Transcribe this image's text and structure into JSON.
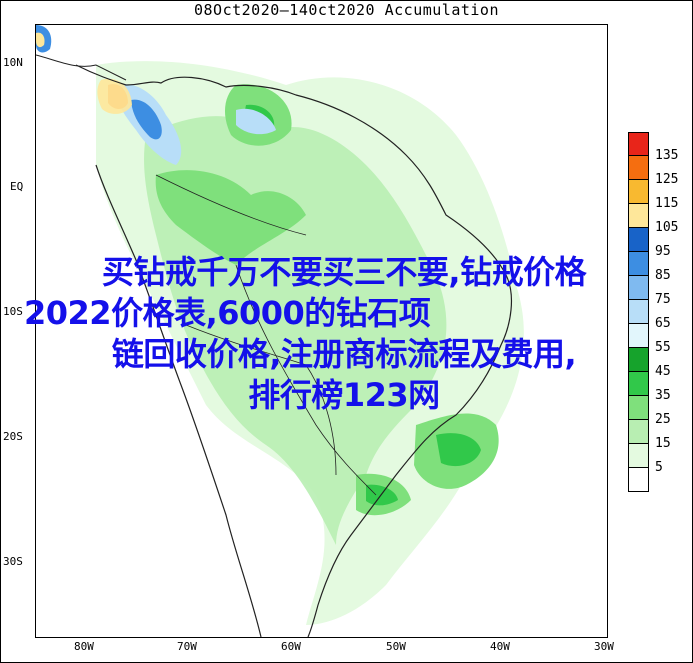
{
  "title": "08Oct2020—140ct2020 Accumulation",
  "lat_labels": [
    "10N",
    "EQ",
    "10S",
    "20S",
    "30S"
  ],
  "lon_labels": [
    "80W",
    "70W",
    "60W",
    "50W",
    "40W",
    "30W"
  ],
  "legend": {
    "labels": [
      "135",
      "125",
      "115",
      "105",
      "95",
      "85",
      "75",
      "65",
      "55",
      "45",
      "35",
      "25",
      "15",
      "5"
    ],
    "colors": [
      "#e8251a",
      "#f56e10",
      "#f8b930",
      "#fee79a",
      "#1863c8",
      "#3d8ee2",
      "#7fbaf0",
      "#b8def8",
      "#e2f6fc",
      "#16a32c",
      "#31c84a",
      "#7fe07c",
      "#b8eeb2",
      "#e4fae0",
      "#ffffff"
    ]
  },
  "overlay_text": {
    "line1": "买钻戒千万不要买三不要,钻戒价格",
    "line2": "2022价格表,6000的钻石项",
    "line3": "链回收价格,注册商标流程及费用,",
    "line4": "排行榜123网"
  }
}
